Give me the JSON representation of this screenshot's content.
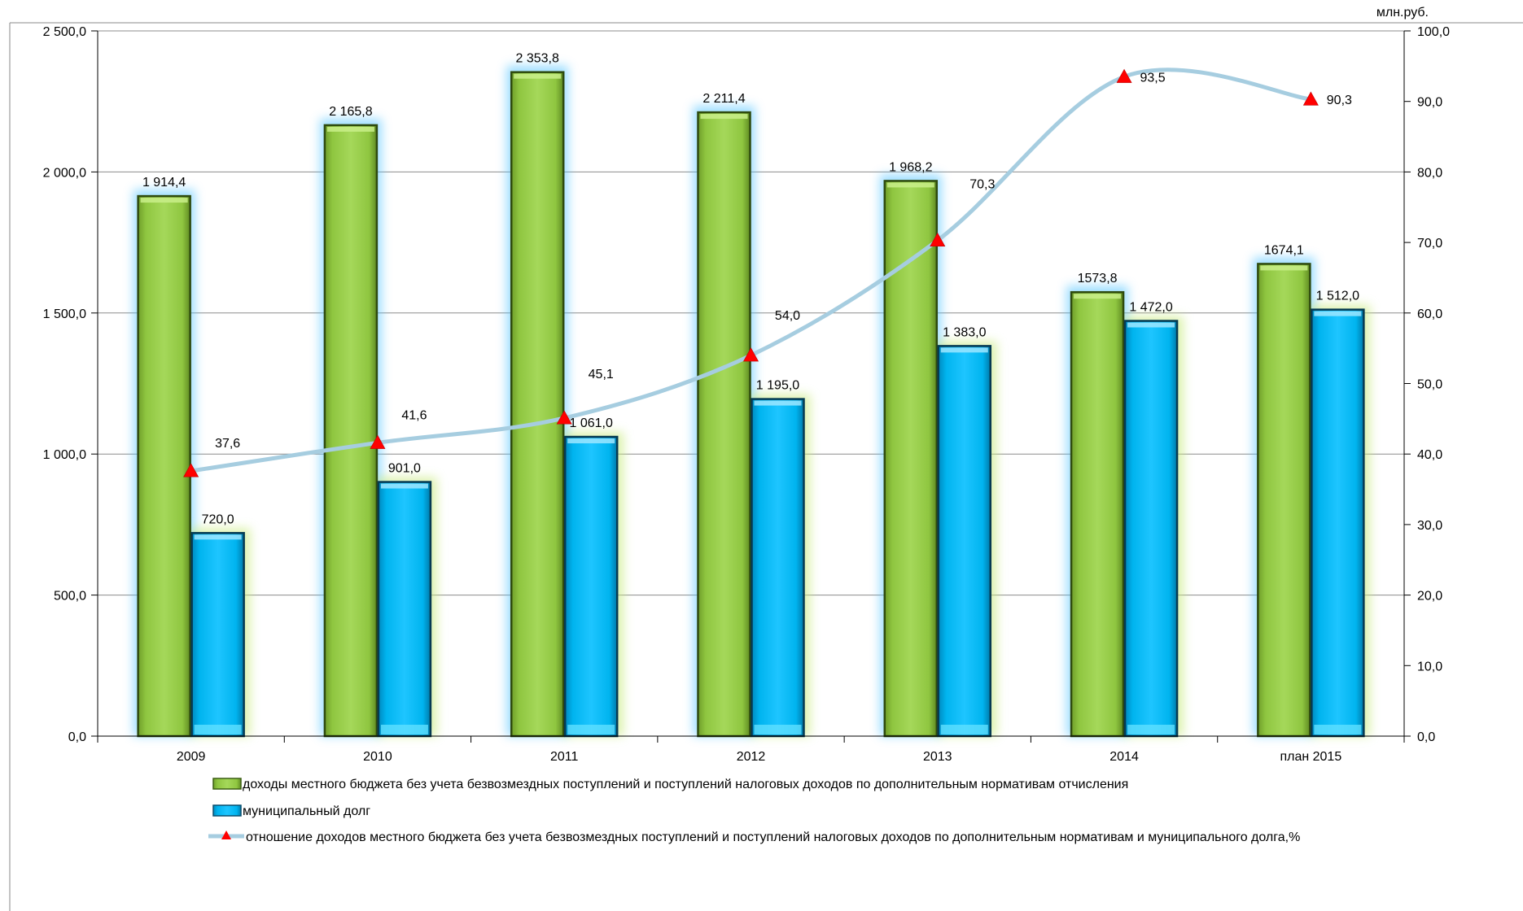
{
  "chart_data": {
    "type": "bar",
    "unit_label": "млн.руб.",
    "categories": [
      "2009",
      "2010",
      "2011",
      "2012",
      "2013",
      "2014",
      "план 2015"
    ],
    "series": [
      {
        "name": "доходы местного бюджета без учета безвозмездных поступлений и поступлений налоговых доходов по дополнительным нормативам отчисления",
        "type": "bar",
        "axis": "left",
        "color": "#92d050",
        "values": [
          1914.4,
          2165.8,
          2353.8,
          2211.4,
          1968.2,
          1573.8,
          1674.1
        ],
        "labels": [
          "1 914,4",
          "2 165,8",
          "2 353,8",
          "2 211,4",
          "1 968,2",
          "1573,8",
          "1674,1"
        ]
      },
      {
        "name": "муниципальный долг",
        "type": "bar",
        "axis": "left",
        "color": "#00b0f0",
        "values": [
          720.0,
          901.0,
          1061.0,
          1195.0,
          1383.0,
          1472.0,
          1512.0
        ],
        "labels": [
          "720,0",
          "901,0",
          "1 061,0",
          "1 195,0",
          "1 383,0",
          "1 472,0",
          "1 512,0"
        ]
      },
      {
        "name": "отношение доходов местного бюджета без учета безвозмездных поступлений и поступлений налоговых доходов по дополнительным нормативам и муниципального долга,%",
        "type": "line",
        "axis": "right",
        "color": "#a6cde0",
        "marker_color": "#ff0000",
        "values": [
          37.6,
          41.6,
          45.1,
          54.0,
          70.3,
          93.5,
          90.3
        ],
        "labels": [
          "37,6",
          "41,6",
          "45,1",
          "54,0",
          "70,3",
          "93,5",
          "90,3"
        ]
      }
    ],
    "y_left": {
      "lim": [
        0,
        2500
      ],
      "ticks": [
        0,
        500,
        1000,
        1500,
        2000,
        2500
      ],
      "tick_labels": [
        "0,0",
        "500,0",
        "1 000,0",
        "1 500,0",
        "2 000,0",
        "2 500,0"
      ]
    },
    "y_right": {
      "lim": [
        0,
        100
      ],
      "ticks": [
        0,
        10,
        20,
        30,
        40,
        50,
        60,
        70,
        80,
        90,
        100
      ],
      "tick_labels": [
        "0,0",
        "10,0",
        "20,0",
        "30,0",
        "40,0",
        "50,0",
        "60,0",
        "70,0",
        "80,0",
        "90,0",
        "100,0"
      ]
    },
    "grid": true,
    "legend_position": "bottom"
  }
}
